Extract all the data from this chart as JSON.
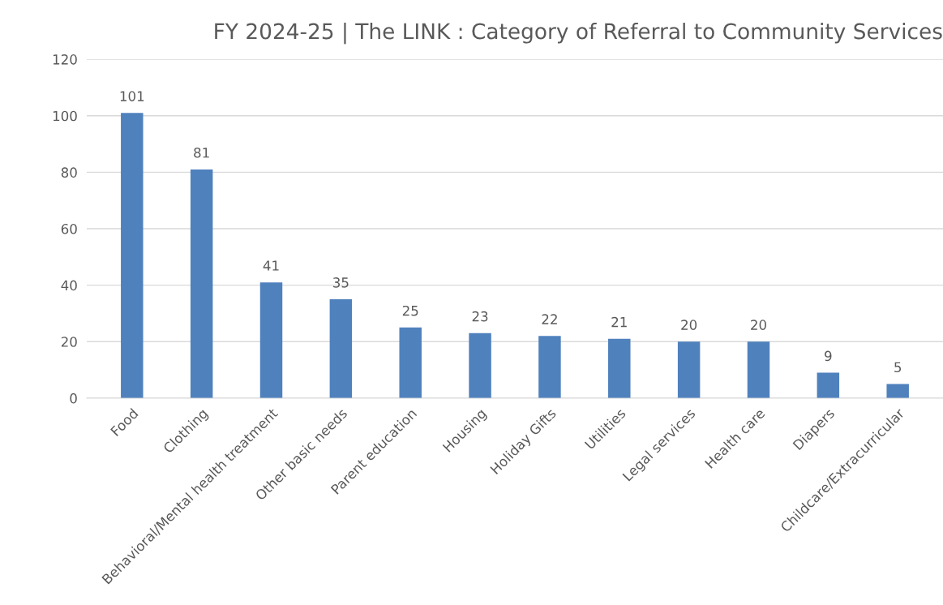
{
  "chart_data": {
    "type": "bar",
    "title": "FY 2024-25 | The LINK : Category of Referral to Community Services",
    "categories": [
      "Food",
      "Clothing",
      "Behavioral/Mental health treatment",
      "Other basic needs",
      "Parent education",
      "Housing",
      "Holiday Gifts",
      "Utilities",
      "Legal services",
      "Health care",
      "Diapers",
      "Childcare/Extracurricular"
    ],
    "values": [
      101,
      81,
      41,
      35,
      25,
      23,
      22,
      21,
      20,
      20,
      9,
      5
    ],
    "color": "#4f81bd",
    "ylim": [
      0,
      120
    ],
    "yticks": [
      0,
      20,
      40,
      60,
      80,
      100,
      120
    ],
    "grid": "y",
    "data_labels": true
  }
}
